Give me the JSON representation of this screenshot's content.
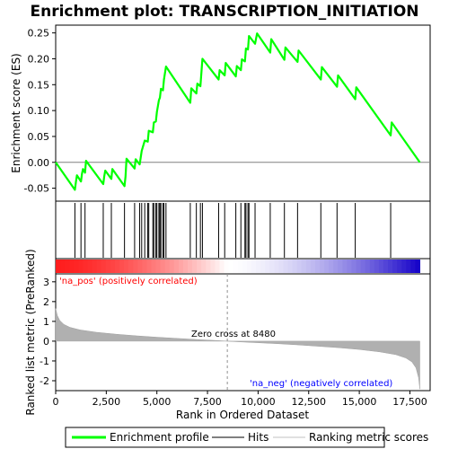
{
  "chart_data": {
    "type": "line",
    "title": "Enrichment plot: TRANSCRIPTION_INITIATION",
    "top_panel": {
      "ylabel": "Enrichment score (ES)",
      "ylim": [
        -0.075,
        0.265
      ],
      "yticks": [
        -0.05,
        0.0,
        0.05,
        0.1,
        0.15,
        0.2,
        0.25
      ],
      "ytick_labels": [
        "-0.05",
        "0.00",
        "0.05",
        "0.10",
        "0.15",
        "0.20",
        "0.25"
      ],
      "series": [
        {
          "name": "Enrichment profile",
          "color": "#00ff00",
          "points": [
            [
              0,
              0.0
            ],
            [
              950,
              -0.053
            ],
            [
              1000,
              -0.038
            ],
            [
              1050,
              -0.025
            ],
            [
              1250,
              -0.037
            ],
            [
              1300,
              -0.022
            ],
            [
              1350,
              -0.013
            ],
            [
              1450,
              -0.02
            ],
            [
              1500,
              0.003
            ],
            [
              2350,
              -0.042
            ],
            [
              2400,
              -0.027
            ],
            [
              2450,
              -0.016
            ],
            [
              2750,
              -0.032
            ],
            [
              2800,
              -0.013
            ],
            [
              3400,
              -0.046
            ],
            [
              3450,
              -0.028
            ],
            [
              3500,
              0.007
            ],
            [
              3900,
              -0.012
            ],
            [
              3950,
              0.006
            ],
            [
              4150,
              -0.004
            ],
            [
              4250,
              0.022
            ],
            [
              4400,
              0.042
            ],
            [
              4550,
              0.04
            ],
            [
              4600,
              0.061
            ],
            [
              4800,
              0.058
            ],
            [
              4850,
              0.077
            ],
            [
              4950,
              0.079
            ],
            [
              5000,
              0.097
            ],
            [
              5100,
              0.12
            ],
            [
              5150,
              0.125
            ],
            [
              5200,
              0.142
            ],
            [
              5300,
              0.139
            ],
            [
              5350,
              0.16
            ],
            [
              5450,
              0.185
            ],
            [
              6650,
              0.115
            ],
            [
              6700,
              0.143
            ],
            [
              6950,
              0.133
            ],
            [
              7000,
              0.152
            ],
            [
              7150,
              0.147
            ],
            [
              7250,
              0.2
            ],
            [
              8050,
              0.16
            ],
            [
              8100,
              0.178
            ],
            [
              8350,
              0.168
            ],
            [
              8400,
              0.192
            ],
            [
              8900,
              0.166
            ],
            [
              8950,
              0.186
            ],
            [
              9150,
              0.178
            ],
            [
              9200,
              0.199
            ],
            [
              9350,
              0.195
            ],
            [
              9400,
              0.22
            ],
            [
              9500,
              0.218
            ],
            [
              9550,
              0.244
            ],
            [
              9850,
              0.229
            ],
            [
              9950,
              0.249
            ],
            [
              10600,
              0.212
            ],
            [
              10650,
              0.238
            ],
            [
              11300,
              0.198
            ],
            [
              11350,
              0.222
            ],
            [
              11950,
              0.194
            ],
            [
              12000,
              0.216
            ],
            [
              13100,
              0.16
            ],
            [
              13150,
              0.184
            ],
            [
              13900,
              0.146
            ],
            [
              13950,
              0.168
            ],
            [
              14800,
              0.122
            ],
            [
              14850,
              0.145
            ],
            [
              16550,
              0.052
            ],
            [
              16600,
              0.077
            ],
            [
              17990,
              0.0
            ]
          ]
        }
      ],
      "hits": [
        950,
        1250,
        1450,
        2350,
        2750,
        3400,
        3900,
        4150,
        4250,
        4400,
        4550,
        4600,
        4800,
        4850,
        4950,
        5000,
        5100,
        5150,
        5200,
        5300,
        5350,
        5450,
        6650,
        6950,
        7150,
        7250,
        8050,
        8350,
        8900,
        9150,
        9350,
        9400,
        9500,
        9550,
        9850,
        10600,
        11300,
        11950,
        13100,
        13900,
        14800,
        16550
      ]
    },
    "bottom_panel": {
      "ylabel": "Ranked list metric (PreRanked)",
      "xlabel": "Rank in Ordered Dataset",
      "ylim": [
        -2.5,
        3.4
      ],
      "yticks": [
        -2,
        -1,
        0,
        1,
        2,
        3
      ],
      "ytick_labels": [
        "-2",
        "-1",
        "0",
        "1",
        "2",
        "3"
      ],
      "xlim": [
        0,
        18500
      ],
      "xticks": [
        0,
        2500,
        5000,
        7500,
        10000,
        12500,
        15000,
        17500
      ],
      "xtick_labels": [
        "0",
        "2,500",
        "5,000",
        "7,500",
        "10,000",
        "12,500",
        "15,000",
        "17,500"
      ],
      "metric_points": [
        [
          0,
          1.65
        ],
        [
          80,
          1.3
        ],
        [
          200,
          1.05
        ],
        [
          400,
          0.85
        ],
        [
          700,
          0.7
        ],
        [
          1200,
          0.57
        ],
        [
          2000,
          0.45
        ],
        [
          3000,
          0.35
        ],
        [
          4000,
          0.27
        ],
        [
          5000,
          0.2
        ],
        [
          6000,
          0.14
        ],
        [
          7000,
          0.08
        ],
        [
          8000,
          0.03
        ],
        [
          8480,
          0.0
        ],
        [
          9000,
          -0.03
        ],
        [
          10000,
          -0.08
        ],
        [
          11000,
          -0.13
        ],
        [
          12000,
          -0.19
        ],
        [
          13000,
          -0.26
        ],
        [
          14000,
          -0.33
        ],
        [
          15000,
          -0.42
        ],
        [
          16000,
          -0.54
        ],
        [
          16800,
          -0.68
        ],
        [
          17300,
          -0.85
        ],
        [
          17600,
          -1.05
        ],
        [
          17800,
          -1.35
        ],
        [
          17930,
          -1.85
        ],
        [
          17990,
          -2.42
        ]
      ],
      "zero_cross": 8480,
      "annotations": {
        "pos": "'na_pos' (positively correlated)",
        "neg": "'na_neg' (negatively correlated)",
        "zero": "Zero cross at 8480"
      }
    },
    "colors": {
      "profile": "#00ff00",
      "hits": "#000000",
      "metric_fill": "#b0b0b0",
      "pos_text": "#ff0000",
      "neg_text": "#0000ff"
    },
    "legend": {
      "placement": "bottom",
      "items": [
        {
          "label": "Enrichment profile",
          "type": "profile"
        },
        {
          "label": "Hits",
          "type": "hits"
        },
        {
          "label": "Ranking metric scores",
          "type": "metric"
        }
      ]
    }
  }
}
